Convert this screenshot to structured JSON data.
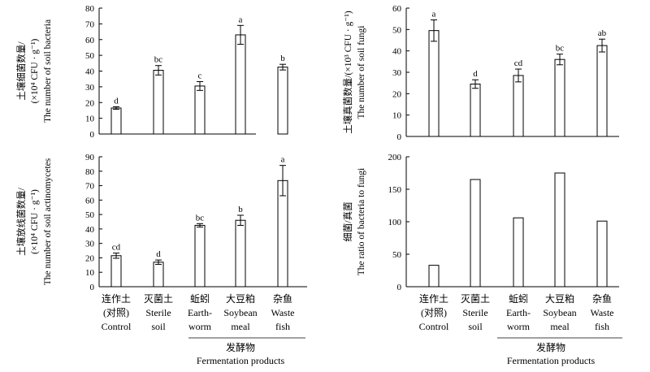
{
  "chart_data": [
    {
      "type": "bar",
      "panel": "top-left",
      "ylabel_lines": [
        "土壤细菌数量/",
        "(×10⁴ CFU · g⁻¹)",
        "The number of soil bacteria"
      ],
      "ylim": [
        0,
        80
      ],
      "yticks": [
        0,
        10,
        20,
        30,
        40,
        50,
        60,
        70,
        80
      ],
      "categories": [
        "Control",
        "Sterile soil",
        "Earthworm",
        "Soybean meal",
        "Waste fish"
      ],
      "values": [
        16.5,
        40.5,
        30.5,
        63,
        42.5
      ],
      "errors": [
        0.8,
        3.0,
        2.8,
        6.0,
        1.8
      ],
      "labels": [
        "d",
        "bc",
        "c",
        "a",
        "b"
      ]
    },
    {
      "type": "bar",
      "panel": "top-right",
      "ylabel_lines": [
        "土壤真菌数量/(×10³ CFU · g⁻¹)",
        "The number of soil  fungi"
      ],
      "ylim": [
        0,
        60
      ],
      "yticks": [
        0,
        10,
        20,
        30,
        40,
        50,
        60
      ],
      "categories": [
        "Control",
        "Sterile soil",
        "Earthworm",
        "Soybean meal",
        "Waste fish"
      ],
      "values": [
        49.5,
        24.5,
        28.5,
        36,
        42.5
      ],
      "errors": [
        5.0,
        2.0,
        3.0,
        2.5,
        3.0
      ],
      "labels": [
        "a",
        "d",
        "cd",
        "bc",
        "ab"
      ]
    },
    {
      "type": "bar",
      "panel": "bottom-left",
      "ylabel_lines": [
        "土壤放线菌数量/",
        "(×10⁴ CFU · g⁻¹)",
        "The number of soil actinomycetes"
      ],
      "ylim": [
        0,
        90
      ],
      "yticks": [
        0,
        10,
        20,
        30,
        40,
        50,
        60,
        70,
        80,
        90
      ],
      "categories": [
        "Control",
        "Sterile soil",
        "Earthworm",
        "Soybean meal",
        "Waste fish"
      ],
      "values": [
        21.5,
        17,
        42.5,
        46,
        73.5
      ],
      "errors": [
        1.8,
        1.5,
        1.2,
        3.5,
        10.5
      ],
      "labels": [
        "cd",
        "d",
        "bc",
        "b",
        "a"
      ]
    },
    {
      "type": "bar",
      "panel": "bottom-right",
      "ylabel_lines": [
        "细菌/真菌",
        "The ratio of bacteria to fungi"
      ],
      "ylim": [
        0,
        200
      ],
      "yticks": [
        0,
        50,
        100,
        150,
        200
      ],
      "categories": [
        "Control",
        "Sterile soil",
        "Earthworm",
        "Soybean meal",
        "Waste fish"
      ],
      "values": [
        33,
        165,
        106,
        175,
        101
      ],
      "errors": [],
      "labels": []
    }
  ],
  "xaxis_categories": [
    [
      "连作土",
      "(对照)",
      "Control"
    ],
    [
      "灭菌土",
      "Sterile",
      "soil"
    ],
    [
      "蚯蚓",
      "Earth-",
      "worm"
    ],
    [
      "大豆粕",
      "Soybean",
      "meal"
    ],
    [
      "杂鱼",
      "Waste",
      "fish"
    ]
  ],
  "group_label": {
    "cn": "发酵物",
    "en": "Fermentation products"
  }
}
